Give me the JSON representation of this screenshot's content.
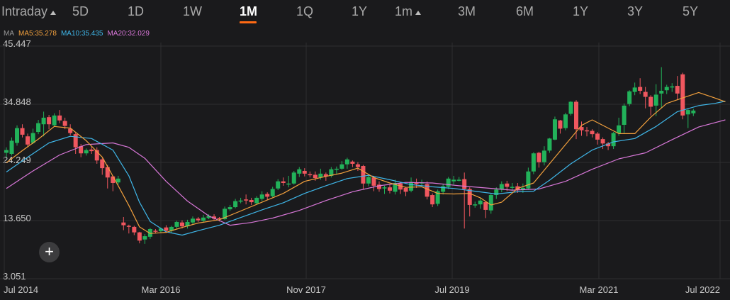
{
  "tabs": [
    {
      "label": "Intraday",
      "caret": true,
      "active": false
    },
    {
      "label": "5D",
      "active": false
    },
    {
      "label": "1D",
      "active": false
    },
    {
      "label": "1W",
      "active": false
    },
    {
      "label": "1M",
      "active": true
    },
    {
      "label": "1Q",
      "active": false
    },
    {
      "label": "1Y",
      "active": false
    },
    {
      "label": "1m",
      "caret": true,
      "active": false
    },
    {
      "label": "3M",
      "active": false
    },
    {
      "label": "6M",
      "active": false
    },
    {
      "label": "1Y",
      "active": false
    },
    {
      "label": "3Y",
      "active": false
    },
    {
      "label": "5Y",
      "active": false
    }
  ],
  "legend": {
    "ma": "MA",
    "ma5": "MA5:35.278",
    "ma10": "MA10:35.435",
    "ma20": "MA20:32.029"
  },
  "colors": {
    "up": "#22b25a",
    "down": "#f0575f",
    "ma5": "#f2a03d",
    "ma10": "#3fb6e8",
    "ma20": "#d877d8",
    "accent": "#ff6a14",
    "legend_label": "#9a9a9a",
    "grid": "#2e2e30",
    "text": "#c8c8c8"
  },
  "icons": {
    "add": "plus-icon"
  },
  "chart_data": {
    "type": "candlestick",
    "frequency": "monthly",
    "y_ticks": [
      "45.447",
      "34.848",
      "24.249",
      "13.650",
      "3.051"
    ],
    "ylim": [
      3.051,
      45.447
    ],
    "x_labels": [
      "Jul 2014",
      "Mar 2016",
      "Nov 2017",
      "Jul 2019",
      "Mar 2021",
      "Jul 2022"
    ],
    "grid": true,
    "series_names": [
      "MA5",
      "MA10",
      "MA20"
    ],
    "candles": [
      [
        26.0,
        26.5,
        25.2,
        27.0
      ],
      [
        25.8,
        28.2,
        25.5,
        28.8
      ],
      [
        27.8,
        30.5,
        27.3,
        31.0
      ],
      [
        30.5,
        29.3,
        28.8,
        31.2
      ],
      [
        29.0,
        27.5,
        27.0,
        29.5
      ],
      [
        27.8,
        29.6,
        27.6,
        30.4
      ],
      [
        29.8,
        31.4,
        29.4,
        32.0
      ],
      [
        31.2,
        32.4,
        29.0,
        33.5
      ],
      [
        32.5,
        31.2,
        30.3,
        32.9
      ],
      [
        31.0,
        32.8,
        30.8,
        33.2
      ],
      [
        32.8,
        31.9,
        31.4,
        33.8
      ],
      [
        31.8,
        30.9,
        30.3,
        32.4
      ],
      [
        30.4,
        29.6,
        29.2,
        31.2
      ],
      [
        29.4,
        27.0,
        25.8,
        29.6
      ],
      [
        27.2,
        25.9,
        25.2,
        27.6
      ],
      [
        25.9,
        26.5,
        25.5,
        26.8
      ],
      [
        26.6,
        26.3,
        25.8,
        27.2
      ],
      [
        26.5,
        24.6,
        24.0,
        27.0
      ],
      [
        24.8,
        23.2,
        22.0,
        25.0
      ],
      [
        23.4,
        21.5,
        19.5,
        23.8
      ],
      [
        21.7,
        20.5,
        19.0,
        21.8
      ],
      [
        20.6,
        21.3,
        20.2,
        21.8
      ],
      [
        13.3,
        12.8,
        11.9,
        14.3
      ],
      [
        12.7,
        12.6,
        11.3,
        12.9
      ],
      [
        12.5,
        11.5,
        11.0,
        12.7
      ],
      [
        11.5,
        10.0,
        9.5,
        11.6
      ],
      [
        10.2,
        10.8,
        9.4,
        11.2
      ],
      [
        10.7,
        12.1,
        10.3,
        12.3
      ],
      [
        11.8,
        11.6,
        11.3,
        12.1
      ],
      [
        11.7,
        12.2,
        11.4,
        12.4
      ],
      [
        12.4,
        11.8,
        11.4,
        12.8
      ],
      [
        11.8,
        12.5,
        11.4,
        12.7
      ],
      [
        12.5,
        13.4,
        12.2,
        13.6
      ],
      [
        13.3,
        12.6,
        12.2,
        13.7
      ],
      [
        12.6,
        13.4,
        12.2,
        13.8
      ],
      [
        13.3,
        14.0,
        13.0,
        14.4
      ],
      [
        14.0,
        13.7,
        13.4,
        14.3
      ],
      [
        13.6,
        14.2,
        13.3,
        14.7
      ],
      [
        14.1,
        14.5,
        13.9,
        14.8
      ],
      [
        14.4,
        14.0,
        13.6,
        14.8
      ],
      [
        14.1,
        13.9,
        13.5,
        14.3
      ],
      [
        13.9,
        15.8,
        13.8,
        16.2
      ],
      [
        15.7,
        16.1,
        15.4,
        16.5
      ],
      [
        16.1,
        17.2,
        15.9,
        17.6
      ],
      [
        17.1,
        17.3,
        16.8,
        17.8
      ],
      [
        17.5,
        17.3,
        16.6,
        18.4
      ],
      [
        17.4,
        17.0,
        16.5,
        17.8
      ],
      [
        16.8,
        17.8,
        16.6,
        18.1
      ],
      [
        17.6,
        18.4,
        17.2,
        19.0
      ],
      [
        18.5,
        18.0,
        17.4,
        18.8
      ],
      [
        18.1,
        19.4,
        17.9,
        19.8
      ],
      [
        19.5,
        20.8,
        19.2,
        21.2
      ],
      [
        20.8,
        20.5,
        20.0,
        21.5
      ],
      [
        20.4,
        20.4,
        19.7,
        21.8
      ],
      [
        20.4,
        22.4,
        20.2,
        22.7
      ],
      [
        22.2,
        23.0,
        21.6,
        23.4
      ],
      [
        22.7,
        22.2,
        21.7,
        23.2
      ],
      [
        22.1,
        22.0,
        21.5,
        22.6
      ],
      [
        22.0,
        21.4,
        20.9,
        22.6
      ],
      [
        21.5,
        22.2,
        21.1,
        23.1
      ],
      [
        22.1,
        21.7,
        20.9,
        22.4
      ],
      [
        21.8,
        23.0,
        21.5,
        23.4
      ],
      [
        23.0,
        23.1,
        22.1,
        23.5
      ],
      [
        23.1,
        23.9,
        22.9,
        24.5
      ],
      [
        23.9,
        24.8,
        23.1,
        25.1
      ],
      [
        24.4,
        24.0,
        23.4,
        24.6
      ],
      [
        23.9,
        23.4,
        22.7,
        24.3
      ],
      [
        23.6,
        20.4,
        19.3,
        23.8
      ],
      [
        20.4,
        21.6,
        19.9,
        22.1
      ],
      [
        21.5,
        20.0,
        19.0,
        21.8
      ],
      [
        20.2,
        19.4,
        18.9,
        20.8
      ],
      [
        19.5,
        19.7,
        18.5,
        20.0
      ],
      [
        19.7,
        19.1,
        18.6,
        20.2
      ],
      [
        18.9,
        20.5,
        18.4,
        21.1
      ],
      [
        20.4,
        19.3,
        18.5,
        20.6
      ],
      [
        19.6,
        18.9,
        18.1,
        19.8
      ],
      [
        19.1,
        20.7,
        18.8,
        21.5
      ],
      [
        20.6,
        20.3,
        19.6,
        21.3
      ],
      [
        20.4,
        20.6,
        19.9,
        21.1
      ],
      [
        20.3,
        18.0,
        17.5,
        20.8
      ],
      [
        18.3,
        16.6,
        16.1,
        18.6
      ],
      [
        16.7,
        19.0,
        16.3,
        19.3
      ],
      [
        18.9,
        19.9,
        18.4,
        20.4
      ],
      [
        19.8,
        21.3,
        19.4,
        21.6
      ],
      [
        20.8,
        21.1,
        20.2,
        21.8
      ],
      [
        21.1,
        21.1,
        20.8,
        21.6
      ],
      [
        21.2,
        19.4,
        12.2,
        22.4
      ],
      [
        19.4,
        16.5,
        14.4,
        19.7
      ],
      [
        16.5,
        16.6,
        16.0,
        17.1
      ],
      [
        16.6,
        17.3,
        15.8,
        17.7
      ],
      [
        17.0,
        15.6,
        14.1,
        17.2
      ],
      [
        15.5,
        18.3,
        14.9,
        18.5
      ],
      [
        18.3,
        19.3,
        17.6,
        19.7
      ],
      [
        19.4,
        20.3,
        18.8,
        20.8
      ],
      [
        20.4,
        19.8,
        19.0,
        20.9
      ],
      [
        19.8,
        19.8,
        19.1,
        20.5
      ],
      [
        19.9,
        19.2,
        18.7,
        20.5
      ],
      [
        19.3,
        19.6,
        18.7,
        20.4
      ],
      [
        19.5,
        22.6,
        19.3,
        23.3
      ],
      [
        22.6,
        25.9,
        22.1,
        26.1
      ],
      [
        26.0,
        24.3,
        23.3,
        26.2
      ],
      [
        24.3,
        26.4,
        23.7,
        27.2
      ],
      [
        26.4,
        28.6,
        26.0,
        28.7
      ],
      [
        28.4,
        32.1,
        28.3,
        32.6
      ],
      [
        31.9,
        30.4,
        29.5,
        32.0
      ],
      [
        30.5,
        33.0,
        30.1,
        33.3
      ],
      [
        33.1,
        35.3,
        32.8,
        35.4
      ],
      [
        35.3,
        30.3,
        28.5,
        35.6
      ],
      [
        30.7,
        30.1,
        29.1,
        31.7
      ],
      [
        30.1,
        30.0,
        29.0,
        30.7
      ],
      [
        30.0,
        29.4,
        28.8,
        30.3
      ],
      [
        29.5,
        28.4,
        27.5,
        29.8
      ],
      [
        28.5,
        27.7,
        26.7,
        28.8
      ],
      [
        27.7,
        27.2,
        26.5,
        28.0
      ],
      [
        27.2,
        29.6,
        26.7,
        29.8
      ],
      [
        29.6,
        31.0,
        29.1,
        32.4
      ],
      [
        31.1,
        34.6,
        29.6,
        35.0
      ],
      [
        34.9,
        37.2,
        34.5,
        37.4
      ],
      [
        37.1,
        37.9,
        36.5,
        38.8
      ],
      [
        38.0,
        37.3,
        36.7,
        39.6
      ],
      [
        37.1,
        36.2,
        34.1,
        38.0
      ],
      [
        36.2,
        34.4,
        32.8,
        36.5
      ],
      [
        34.6,
        36.6,
        32.7,
        38.5
      ],
      [
        36.8,
        37.3,
        34.2,
        41.6
      ],
      [
        37.4,
        38.0,
        36.7,
        38.4
      ],
      [
        38.0,
        38.1,
        37.1,
        38.7
      ],
      [
        38.2,
        36.8,
        35.6,
        40.0
      ],
      [
        40.3,
        32.8,
        32.1,
        40.6
      ],
      [
        33.0,
        33.8,
        30.5,
        34.1
      ],
      [
        33.2,
        33.7,
        32.7,
        34.0
      ]
    ],
    "ma5": [
      [
        0,
        24.2
      ],
      [
        3,
        26.4
      ],
      [
        6,
        28.5
      ],
      [
        9,
        30.8
      ],
      [
        12,
        30.5
      ],
      [
        15,
        28.2
      ],
      [
        18,
        25.2
      ],
      [
        21,
        20.0
      ],
      [
        23,
        16.4
      ],
      [
        25,
        12.5
      ],
      [
        27,
        11.3
      ],
      [
        30,
        11.5
      ],
      [
        33,
        12.4
      ],
      [
        36,
        13.2
      ],
      [
        40,
        13.8
      ],
      [
        44,
        15.4
      ],
      [
        48,
        17.0
      ],
      [
        52,
        18.6
      ],
      [
        56,
        20.8
      ],
      [
        60,
        21.7
      ],
      [
        63,
        22.3
      ],
      [
        66,
        23.2
      ],
      [
        69,
        21.5
      ],
      [
        72,
        20.5
      ],
      [
        75,
        19.7
      ],
      [
        78,
        19.8
      ],
      [
        81,
        18.6
      ],
      [
        84,
        18.5
      ],
      [
        87,
        18.6
      ],
      [
        89,
        17.8
      ],
      [
        91,
        16.5
      ],
      [
        93,
        17.0
      ],
      [
        96,
        19.5
      ],
      [
        99,
        20.5
      ],
      [
        102,
        24.0
      ],
      [
        105,
        27.5
      ],
      [
        108,
        31.0
      ],
      [
        110,
        32.0
      ],
      [
        113,
        30.5
      ],
      [
        115,
        29.5
      ],
      [
        118,
        29.5
      ],
      [
        121,
        32.5
      ],
      [
        124,
        35.0
      ],
      [
        127,
        36.0
      ],
      [
        130,
        37.0
      ],
      [
        133,
        36.0
      ],
      [
        135,
        35.3
      ]
    ],
    "ma10": [
      [
        0,
        22.5
      ],
      [
        4,
        25.2
      ],
      [
        8,
        27.8
      ],
      [
        12,
        29.0
      ],
      [
        16,
        28.6
      ],
      [
        20,
        26.5
      ],
      [
        23,
        21.8
      ],
      [
        25,
        17.0
      ],
      [
        27,
        13.5
      ],
      [
        30,
        11.6
      ],
      [
        33,
        11.0
      ],
      [
        36,
        11.8
      ],
      [
        40,
        12.8
      ],
      [
        44,
        14.2
      ],
      [
        48,
        15.6
      ],
      [
        52,
        16.9
      ],
      [
        56,
        18.6
      ],
      [
        60,
        20.0
      ],
      [
        64,
        21.3
      ],
      [
        68,
        21.9
      ],
      [
        72,
        21.1
      ],
      [
        76,
        20.2
      ],
      [
        80,
        19.8
      ],
      [
        84,
        19.5
      ],
      [
        88,
        19.0
      ],
      [
        92,
        18.5
      ],
      [
        96,
        18.9
      ],
      [
        99,
        19.0
      ],
      [
        102,
        21.0
      ],
      [
        106,
        24.0
      ],
      [
        110,
        26.5
      ],
      [
        114,
        28.0
      ],
      [
        118,
        28.6
      ],
      [
        122,
        30.8
      ],
      [
        126,
        33.5
      ],
      [
        130,
        34.6
      ],
      [
        133,
        35.0
      ],
      [
        135,
        35.4
      ]
    ],
    "ma20": [
      [
        0,
        19.5
      ],
      [
        5,
        22.7
      ],
      [
        10,
        25.6
      ],
      [
        15,
        27.5
      ],
      [
        20,
        27.8
      ],
      [
        23,
        27.0
      ],
      [
        26,
        25.0
      ],
      [
        30,
        20.8
      ],
      [
        34,
        17.2
      ],
      [
        38,
        14.5
      ],
      [
        42,
        12.8
      ],
      [
        46,
        13.3
      ],
      [
        50,
        14.1
      ],
      [
        55,
        15.5
      ],
      [
        60,
        17.3
      ],
      [
        65,
        18.9
      ],
      [
        70,
        20.0
      ],
      [
        75,
        20.6
      ],
      [
        80,
        20.5
      ],
      [
        85,
        20.0
      ],
      [
        90,
        19.6
      ],
      [
        95,
        19.2
      ],
      [
        100,
        19.4
      ],
      [
        105,
        20.8
      ],
      [
        110,
        23.0
      ],
      [
        115,
        24.9
      ],
      [
        120,
        26.0
      ],
      [
        125,
        28.4
      ],
      [
        130,
        30.7
      ],
      [
        135,
        32.0
      ]
    ]
  }
}
